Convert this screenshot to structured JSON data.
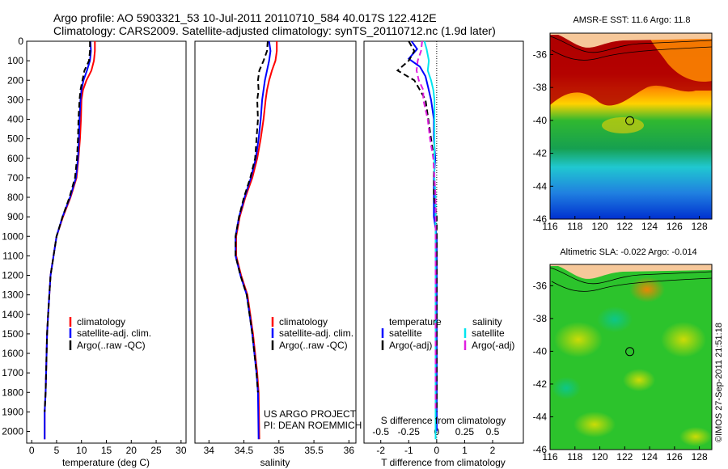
{
  "header": {
    "line1": "Argo profile: AO 5903321_53 10-Jul-2011 20110710_584 40.017S 122.412E",
    "line2": "Climatology: CARS2009. Satellite-adjusted climatology: synTS_20110712.nc (1.9d later)"
  },
  "colors": {
    "climatology": "#ff0000",
    "satellite": "#0000ff",
    "argo": "#000000",
    "s_satellite": "#00e5ee",
    "s_argo": "#e020e0"
  },
  "chart_data": [
    {
      "type": "line",
      "title": "",
      "xlabel": "temperature (deg C)",
      "ylabel": "",
      "xlim": [
        -1,
        31
      ],
      "ylim": [
        2060,
        0
      ],
      "xticks": [
        0,
        5,
        10,
        15,
        20,
        25,
        30
      ],
      "xtick_labels": [
        "0",
        "5",
        "10",
        "15",
        "20",
        "25",
        "30"
      ],
      "yticks": [
        0,
        100,
        200,
        300,
        400,
        500,
        600,
        700,
        800,
        900,
        1000,
        1100,
        1200,
        1300,
        1400,
        1500,
        1600,
        1700,
        1800,
        1900,
        2000
      ],
      "ytick_labels": [
        "0",
        "100",
        "200",
        "300",
        "400",
        "500",
        "600",
        "700",
        "800",
        "900",
        "1000",
        "1100",
        "1200",
        "1300",
        "1400",
        "1500",
        "1600",
        "1700",
        "1800",
        "1900",
        "2000"
      ],
      "legend": [
        "climatology",
        "satellite-adj. clim.",
        "Argo(..raw -QC)"
      ],
      "series": [
        {
          "name": "climatology",
          "color": "#ff0000",
          "dash": "",
          "x": [
            12.7,
            12.7,
            12.5,
            12.0,
            11.0,
            10.3,
            10.0,
            9.9,
            9.7,
            9.4,
            9.0,
            7.8,
            6.3,
            5.0,
            3.8,
            3.3,
            3.1,
            3.0,
            2.9,
            2.8,
            2.6,
            2.6
          ],
          "depth": [
            0,
            50,
            100,
            150,
            200,
            250,
            300,
            400,
            500,
            600,
            700,
            800,
            900,
            1000,
            1200,
            1400,
            1500,
            1600,
            1700,
            1800,
            1900,
            2040
          ]
        },
        {
          "name": "satellite-adj. clim.",
          "color": "#0000ff",
          "dash": "",
          "x": [
            11.8,
            11.9,
            11.7,
            11.1,
            10.4,
            10.0,
            9.8,
            9.6,
            9.5,
            9.3,
            8.9,
            7.7,
            6.2,
            5.0,
            3.8,
            3.3,
            3.1,
            3.0,
            2.9,
            2.8,
            2.6,
            2.6
          ],
          "depth": [
            0,
            50,
            100,
            150,
            200,
            250,
            300,
            400,
            500,
            600,
            700,
            800,
            900,
            1000,
            1200,
            1400,
            1500,
            1600,
            1700,
            1800,
            1900,
            2040
          ]
        },
        {
          "name": "Argo(..raw -QC)",
          "color": "#000000",
          "dash": "7,4",
          "x": [
            11.7,
            11.7,
            11.5,
            10.6,
            10.2,
            9.8,
            9.6,
            9.4,
            9.3,
            9.1,
            8.7,
            7.6,
            6.2,
            5.0,
            3.8,
            3.3,
            3.1,
            3.0,
            2.9,
            2.8,
            2.6
          ],
          "depth": [
            0,
            50,
            100,
            150,
            200,
            250,
            300,
            400,
            500,
            600,
            700,
            800,
            900,
            1000,
            1200,
            1400,
            1500,
            1600,
            1700,
            1800,
            1900
          ]
        }
      ]
    },
    {
      "type": "line",
      "title": "",
      "xlabel": "salinity",
      "ylabel": "",
      "xlim": [
        33.8,
        36.1
      ],
      "ylim": [
        2060,
        0
      ],
      "xticks": [
        34,
        34.5,
        35,
        35.5,
        36
      ],
      "xtick_labels": [
        "34",
        "34.5",
        "35",
        "35.5",
        "36"
      ],
      "legend": [
        "climatology",
        "satellite-adj. clim.",
        "Argo(..raw -QC)"
      ],
      "annotation": [
        "US ARGO PROJECT",
        "PI: DEAN ROEMMICH"
      ],
      "series": [
        {
          "name": "climatology",
          "color": "#ff0000",
          "dash": "",
          "x": [
            34.97,
            34.97,
            34.95,
            34.9,
            34.86,
            34.83,
            34.81,
            34.78,
            34.74,
            34.69,
            34.62,
            34.52,
            34.44,
            34.39,
            34.39,
            34.46,
            34.55,
            34.59,
            34.63,
            34.66,
            34.69,
            34.71,
            34.72
          ],
          "depth": [
            0,
            50,
            100,
            150,
            200,
            250,
            300,
            400,
            500,
            600,
            700,
            800,
            900,
            1000,
            1100,
            1200,
            1300,
            1400,
            1500,
            1600,
            1700,
            1800,
            2040
          ]
        },
        {
          "name": "satellite-adj. clim.",
          "color": "#0000ff",
          "dash": "",
          "x": [
            34.86,
            34.88,
            34.86,
            34.83,
            34.8,
            34.78,
            34.76,
            34.74,
            34.71,
            34.67,
            34.6,
            34.51,
            34.43,
            34.38,
            34.38,
            34.45,
            34.54,
            34.58,
            34.62,
            34.65,
            34.68,
            34.7,
            34.71
          ],
          "depth": [
            0,
            50,
            100,
            150,
            200,
            250,
            300,
            400,
            500,
            600,
            700,
            800,
            900,
            1000,
            1100,
            1200,
            1300,
            1400,
            1500,
            1600,
            1700,
            1800,
            2040
          ]
        },
        {
          "name": "Argo(..raw -QC)",
          "color": "#000000",
          "dash": "7,4",
          "x": [
            34.84,
            34.83,
            34.78,
            34.72,
            34.7,
            34.71,
            34.69,
            34.7,
            34.68,
            34.66,
            34.59,
            34.5,
            34.43,
            34.38,
            34.38,
            34.45,
            34.54,
            34.58,
            34.62,
            34.65,
            34.68,
            34.7
          ],
          "depth": [
            0,
            50,
            100,
            150,
            200,
            250,
            300,
            400,
            500,
            600,
            700,
            800,
            900,
            1000,
            1100,
            1200,
            1300,
            1400,
            1500,
            1600,
            1700,
            1800
          ]
        }
      ]
    },
    {
      "type": "line",
      "title": "",
      "xlabel": "T difference from climatology",
      "xlabel_top": "S difference from climatology",
      "ylabel": "",
      "xlim": [
        -2.6,
        3.1
      ],
      "ylim": [
        2060,
        0
      ],
      "xticks": [
        -2,
        -1,
        0,
        1,
        2
      ],
      "xtick_labels": [
        "-2",
        "-1",
        "0",
        "1",
        "2"
      ],
      "s_ticks": [
        "-0.5",
        "-0.25",
        "0",
        "0.25",
        "0.5"
      ],
      "s_xlim": [
        -0.65,
        0.775
      ],
      "legend_temperature_title": "temperature",
      "legend_salinity_title": "salinity",
      "legend_temperature": [
        "satellite",
        "Argo(-adj)"
      ],
      "legend_salinity": [
        "satellite",
        "Argo(-adj)"
      ],
      "series": [
        {
          "name": "T satellite",
          "color": "#0000ff",
          "dash": "",
          "x": [
            -0.9,
            -0.7,
            -1.0,
            -0.6,
            -0.4,
            -0.3,
            -0.2,
            -0.1,
            -0.1,
            -0.05,
            -0.1,
            -0.1,
            -0.1,
            0,
            0,
            0,
            0,
            0,
            0,
            0,
            0,
            0
          ],
          "depth": [
            0,
            40,
            90,
            130,
            180,
            240,
            300,
            400,
            500,
            600,
            700,
            800,
            900,
            1000,
            1200,
            1400,
            1500,
            1600,
            1700,
            1800,
            1900,
            2000
          ]
        },
        {
          "name": "T Argo(-adj)",
          "color": "#000000",
          "dash": "7,4",
          "x": [
            -1.0,
            -0.8,
            -1.0,
            -1.4,
            -0.8,
            -0.6,
            -0.4,
            -0.3,
            -0.2,
            -0.1,
            -0.1,
            -0.1,
            0,
            0,
            0,
            0,
            0,
            0,
            0,
            0,
            0
          ],
          "depth": [
            0,
            50,
            100,
            150,
            200,
            250,
            300,
            400,
            500,
            600,
            700,
            800,
            900,
            1000,
            1200,
            1400,
            1500,
            1600,
            1700,
            1800,
            1900
          ]
        },
        {
          "name": "S satellite",
          "color": "#00e5ee",
          "dash": "",
          "x": [
            -0.11,
            -0.09,
            -0.07,
            -0.08,
            -0.05,
            -0.03,
            -0.02,
            -0.02,
            -0.02,
            -0.02,
            -0.02,
            -0.01,
            -0.01,
            -0.01,
            -0.01,
            -0.01,
            -0.01,
            -0.01,
            -0.01,
            -0.01,
            -0.01,
            -0.01
          ],
          "depth": [
            0,
            40,
            100,
            150,
            200,
            250,
            300,
            400,
            500,
            600,
            700,
            800,
            900,
            1000,
            1200,
            1400,
            1500,
            1600,
            1700,
            1800,
            1900,
            2040
          ]
        },
        {
          "name": "S Argo(-adj)",
          "color": "#e020e0",
          "dash": "7,4",
          "x": [
            -0.13,
            -0.14,
            -0.17,
            -0.18,
            -0.16,
            -0.12,
            -0.12,
            -0.08,
            -0.06,
            -0.03,
            -0.02,
            -0.01,
            -0.01,
            -0.01,
            -0.01,
            -0.01,
            -0.01,
            -0.01,
            -0.01,
            -0.01,
            -0.01
          ],
          "depth": [
            0,
            50,
            100,
            150,
            200,
            250,
            300,
            400,
            500,
            600,
            700,
            800,
            900,
            1000,
            1200,
            1400,
            1500,
            1600,
            1700,
            1800,
            1900
          ]
        }
      ]
    },
    {
      "type": "heatmap",
      "title": "AMSR-E SST: 11.6  Argo: 11.8",
      "xlim": [
        116,
        129
      ],
      "ylim": [
        -46,
        -34.7
      ],
      "xticks": [
        116,
        118,
        120,
        122,
        124,
        126,
        128
      ],
      "xtick_labels": [
        "116",
        "118",
        "120",
        "122",
        "124",
        "126",
        "128"
      ],
      "yticks": [
        -36,
        -38,
        -40,
        -42,
        -44,
        -46
      ],
      "ytick_labels": [
        "-36",
        "-38",
        "-40",
        "-42",
        "-44",
        "-46"
      ],
      "marker": {
        "lon": 122.41,
        "lat": -40.02
      },
      "field_description": "SST, warm (dark red) in north near 35-38S decreasing to blue in south near 46S"
    },
    {
      "type": "heatmap",
      "title": "Altimetric SLA: -0.022  Argo: -0.014",
      "xlim": [
        116,
        129
      ],
      "ylim": [
        -46,
        -34.7
      ],
      "xticks": [
        116,
        118,
        120,
        122,
        124,
        126,
        128
      ],
      "xtick_labels": [
        "116",
        "118",
        "120",
        "122",
        "124",
        "126",
        "128"
      ],
      "yticks": [
        -36,
        -38,
        -40,
        -42,
        -44,
        -46
      ],
      "ytick_labels": [
        "-36",
        "-38",
        "-40",
        "-42",
        "-44",
        "-46"
      ],
      "marker": {
        "lon": 122.41,
        "lat": -40.02
      },
      "field_description": "sea level anomaly, mostly green with yellow and orange patches"
    }
  ],
  "side_label": "©IMOS 27-Sep-2011 21:51:18"
}
